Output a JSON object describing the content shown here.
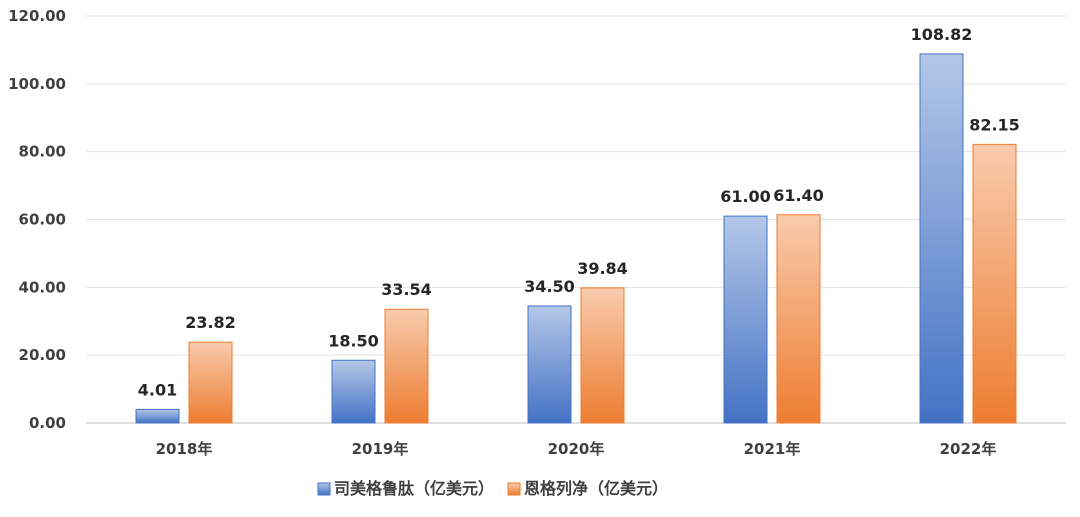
{
  "chart_data": {
    "type": "bar",
    "categories": [
      "2018年",
      "2019年",
      "2020年",
      "2021年",
      "2022年"
    ],
    "series": [
      {
        "name": "司美格鲁肽（亿美元）",
        "values": [
          4.01,
          18.5,
          34.5,
          61.0,
          108.82
        ],
        "color": "#4472C4",
        "color_light": "#B4C7E7"
      },
      {
        "name": "恩格列净（亿美元）",
        "values": [
          23.82,
          33.54,
          39.84,
          61.4,
          82.15
        ],
        "color": "#ED7D31",
        "color_light": "#F8CBAD"
      }
    ],
    "yticks": [
      "0.00",
      "20.00",
      "40.00",
      "60.00",
      "80.00",
      "100.00",
      "120.00"
    ],
    "ylim": [
      0,
      120
    ],
    "grid": true,
    "legend_position": "bottom"
  }
}
